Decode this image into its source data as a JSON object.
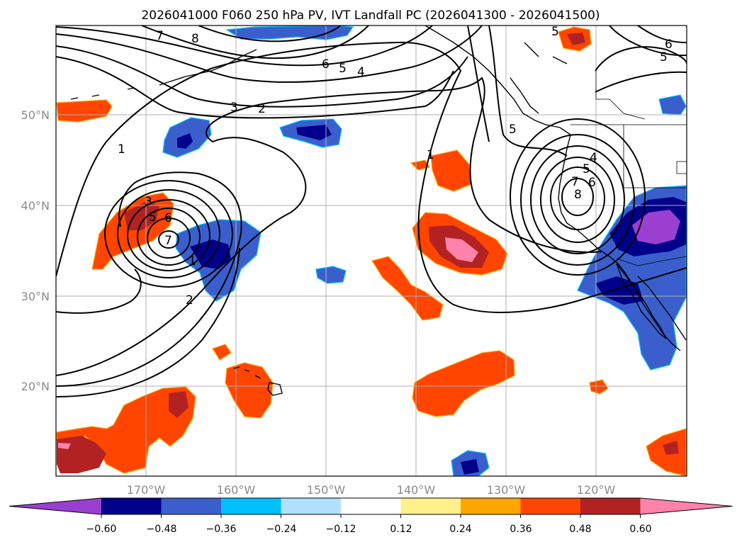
{
  "title": "2026041000 F060 250 hPa PV, IVT Landfall PC (2026041300 - 2026041500)",
  "map": {
    "lon_range": [
      -180,
      -110
    ],
    "lat_range": [
      10,
      60
    ],
    "lat_ticks": [
      "50°N",
      "40°N",
      "30°N",
      "20°N"
    ],
    "lon_ticks": [
      "170°W",
      "160°W",
      "150°W",
      "140°W",
      "130°W",
      "120°W"
    ],
    "grid": true,
    "fields": {
      "shaded": "IVT Landfall PC",
      "contoured": "250 hPa PV"
    }
  },
  "colorbar": {
    "orientation": "horizontal",
    "extend": "both",
    "levels": [
      -0.72,
      -0.6,
      -0.48,
      -0.36,
      -0.24,
      -0.12,
      0.12,
      0.24,
      0.36,
      0.48,
      0.6,
      0.72
    ],
    "colors": [
      "#9b3fd1",
      "#00008b",
      "#3a5fcd",
      "#00bfff",
      "#b0e2ff",
      "#ffffff",
      "#fff08c",
      "#ffa500",
      "#ff4500",
      "#b22222",
      "#ff82ab"
    ],
    "tick_labels": [
      "−0.60",
      "−0.48",
      "−0.36",
      "−0.24",
      "−0.12",
      "0.12",
      "0.24",
      "0.36",
      "0.48",
      "0.60"
    ]
  },
  "contour_labels": [
    "7",
    "8",
    "6",
    "5",
    "4",
    "3",
    "2",
    "1",
    "1",
    "3",
    "5",
    "6",
    "7",
    "2",
    "1",
    "5",
    "4",
    "5",
    "7",
    "6",
    "8",
    "5",
    "6",
    "5"
  ]
}
